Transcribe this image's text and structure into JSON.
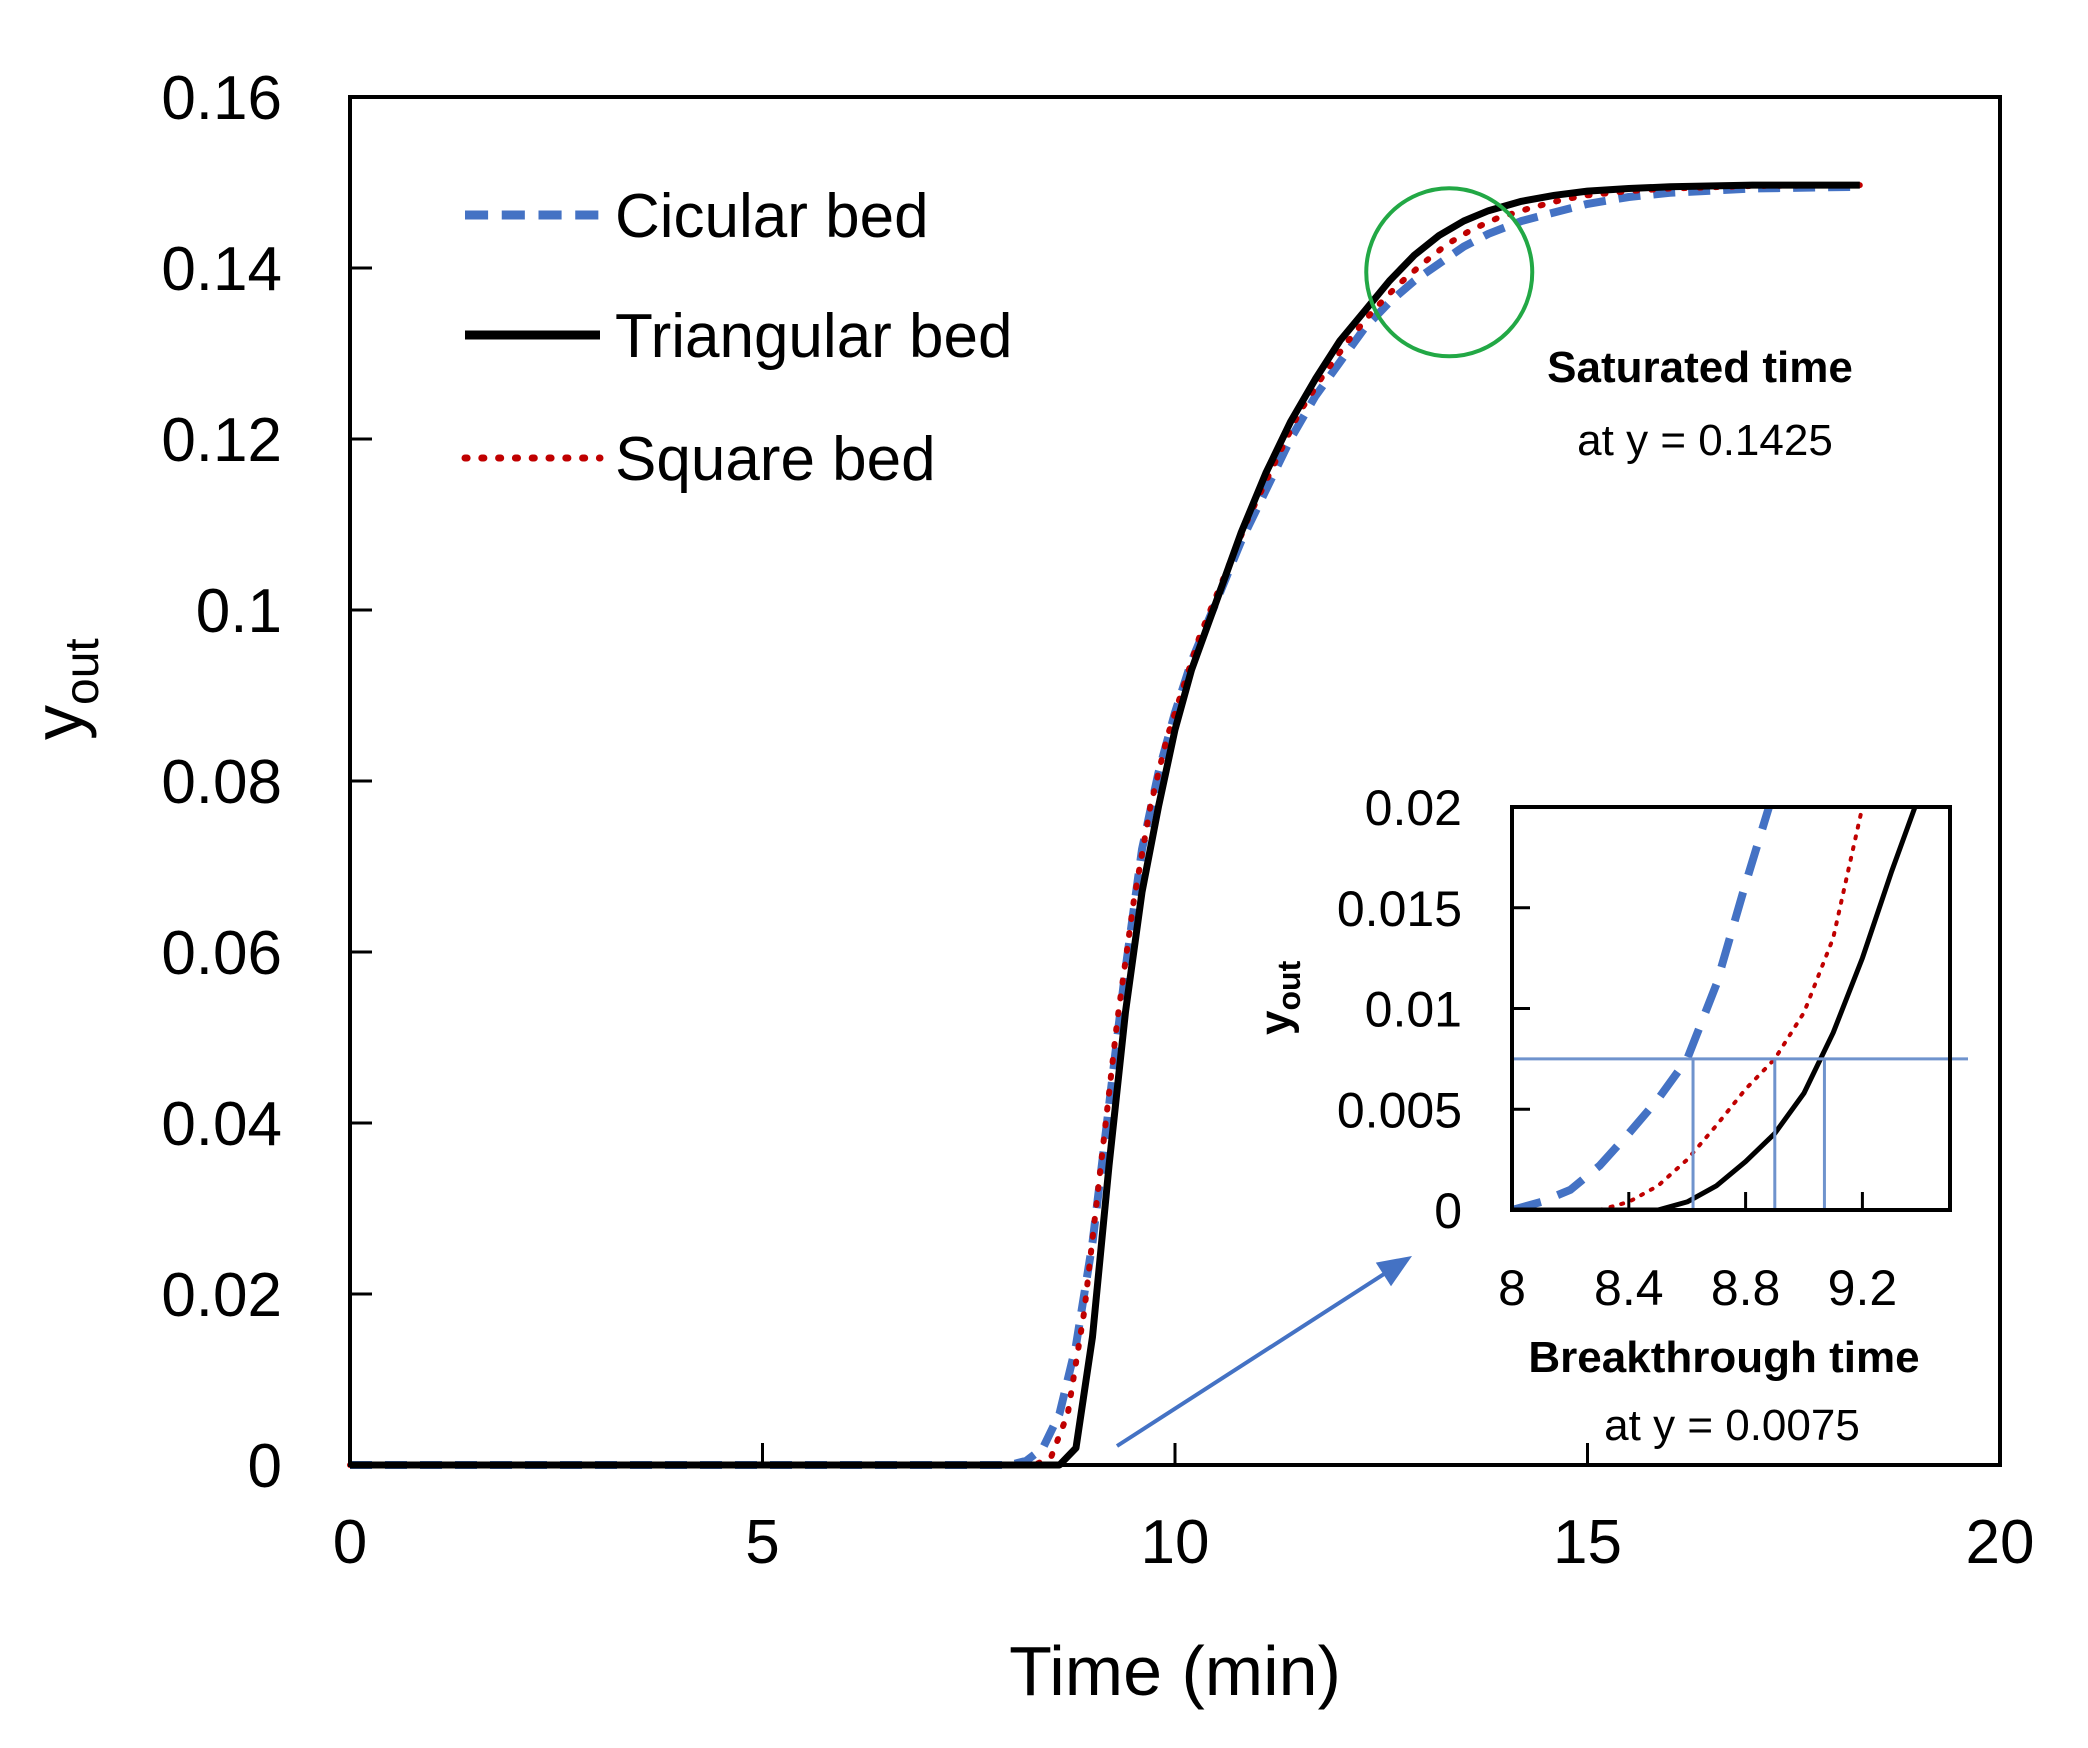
{
  "chart_data": [
    {
      "type": "line",
      "xlabel": "Time (min)",
      "ylabel": "y",
      "ylabel_sub": "out",
      "xlim": [
        0,
        20
      ],
      "ylim": [
        0,
        0.16
      ],
      "xticks": [
        0,
        5,
        10,
        15,
        20
      ],
      "yticks": [
        0,
        0.02,
        0.04,
        0.06,
        0.08,
        0.1,
        0.12,
        0.14,
        0.16
      ],
      "xtick_labels": [
        "0",
        "5",
        "10",
        "15",
        "20"
      ],
      "ytick_labels": [
        "0",
        "0.02",
        "0.04",
        "0.06",
        "0.08",
        "0.1",
        "0.12",
        "0.14",
        "0.16"
      ],
      "legend_position": "top-left",
      "series": [
        {
          "name": "Cicular bed",
          "style": "dashed",
          "color": "#4472C4",
          "x": [
            0,
            8.0,
            8.2,
            8.4,
            8.6,
            8.8,
            9.0,
            9.2,
            9.4,
            9.6,
            9.8,
            10.0,
            10.2,
            10.5,
            10.8,
            11.1,
            11.4,
            11.7,
            12.0,
            12.3,
            12.6,
            12.9,
            13.2,
            13.5,
            13.8,
            14.2,
            14.6,
            15.0,
            15.5,
            16.0,
            17.0,
            18.3
          ],
          "y": [
            0,
            0,
            0.0005,
            0.002,
            0.006,
            0.014,
            0.026,
            0.042,
            0.058,
            0.072,
            0.081,
            0.088,
            0.094,
            0.101,
            0.108,
            0.114,
            0.12,
            0.125,
            0.129,
            0.133,
            0.136,
            0.1385,
            0.1405,
            0.1425,
            0.144,
            0.1455,
            0.1465,
            0.1475,
            0.1483,
            0.1488,
            0.1493,
            0.1495
          ]
        },
        {
          "name": "Triangular bed",
          "style": "solid",
          "color": "#000000",
          "x": [
            0,
            8.6,
            8.8,
            9.0,
            9.2,
            9.4,
            9.6,
            9.8,
            10.0,
            10.2,
            10.5,
            10.8,
            11.1,
            11.4,
            11.7,
            12.0,
            12.3,
            12.6,
            12.9,
            13.2,
            13.5,
            13.8,
            14.2,
            14.6,
            15.0,
            15.5,
            16.0,
            17.0,
            18.3
          ],
          "y": [
            0,
            0,
            0.002,
            0.015,
            0.035,
            0.053,
            0.067,
            0.077,
            0.086,
            0.093,
            0.101,
            0.109,
            0.116,
            0.122,
            0.127,
            0.1315,
            0.135,
            0.1385,
            0.1415,
            0.1438,
            0.1455,
            0.1467,
            0.1478,
            0.1485,
            0.149,
            0.1493,
            0.1495,
            0.1497,
            0.1497
          ]
        },
        {
          "name": "Square bed",
          "style": "dotted",
          "color": "#C00000",
          "x": [
            0,
            8.3,
            8.5,
            8.7,
            8.9,
            9.1,
            9.3,
            9.5,
            9.7,
            9.9,
            10.1,
            10.3,
            10.6,
            10.9,
            11.2,
            11.5,
            11.8,
            12.1,
            12.4,
            12.7,
            13.0,
            13.3,
            13.6,
            13.9,
            14.3,
            14.7,
            15.0,
            15.5,
            16.0,
            17.0,
            18.3
          ],
          "y": [
            0,
            0,
            0.001,
            0.006,
            0.018,
            0.035,
            0.052,
            0.066,
            0.077,
            0.085,
            0.091,
            0.097,
            0.104,
            0.111,
            0.117,
            0.123,
            0.1275,
            0.1315,
            0.135,
            0.138,
            0.1405,
            0.1428,
            0.1445,
            0.1458,
            0.147,
            0.148,
            0.1485,
            0.149,
            0.1493,
            0.1496,
            0.1497
          ]
        }
      ],
      "annotations": {
        "saturated_title": "Saturated time",
        "saturated_value": "at y =  0.1425",
        "saturated_circle_center": [
          13.3,
          0.1395
        ]
      }
    },
    {
      "type": "line",
      "role": "inset",
      "xlabel": "Breakthrough time",
      "xlabel_sub": "at y = 0.0075",
      "ylabel": "y",
      "ylabel_sub": "out",
      "xlim": [
        8,
        9.5
      ],
      "ylim": [
        0,
        0.02
      ],
      "xticks": [
        8,
        8.4,
        8.8,
        9.2
      ],
      "yticks": [
        0,
        0.005,
        0.01,
        0.015,
        0.02
      ],
      "xtick_labels": [
        "8",
        "8.4",
        "8.8",
        "9.2"
      ],
      "ytick_labels": [
        "0",
        "0.005",
        "0.01",
        "0.015",
        "0.02"
      ],
      "threshold_y": 0.0075,
      "breakthrough_times": [
        8.62,
        8.9,
        9.07
      ],
      "series": [
        {
          "name": "Cicular bed",
          "style": "dashed",
          "color": "#4472C4",
          "x": [
            8.0,
            8.1,
            8.2,
            8.3,
            8.4,
            8.5,
            8.6,
            8.7,
            8.8,
            8.88
          ],
          "y": [
            0,
            0.0004,
            0.001,
            0.0022,
            0.0038,
            0.0055,
            0.0075,
            0.0112,
            0.0162,
            0.02
          ]
        },
        {
          "name": "Triangular bed",
          "style": "solid",
          "color": "#000000",
          "x": [
            8.0,
            8.5,
            8.6,
            8.7,
            8.8,
            8.9,
            9.0,
            9.1,
            9.2,
            9.3,
            9.38
          ],
          "y": [
            0,
            0,
            0.0004,
            0.0012,
            0.0024,
            0.0038,
            0.0058,
            0.0088,
            0.0125,
            0.0168,
            0.02
          ]
        },
        {
          "name": "Square bed",
          "style": "dotted",
          "color": "#C00000",
          "x": [
            8.0,
            8.3,
            8.4,
            8.5,
            8.6,
            8.7,
            8.8,
            8.9,
            9.0,
            9.1,
            9.2
          ],
          "y": [
            0,
            0,
            0.0004,
            0.0012,
            0.0025,
            0.0042,
            0.006,
            0.0075,
            0.0098,
            0.0135,
            0.02
          ]
        }
      ]
    }
  ]
}
